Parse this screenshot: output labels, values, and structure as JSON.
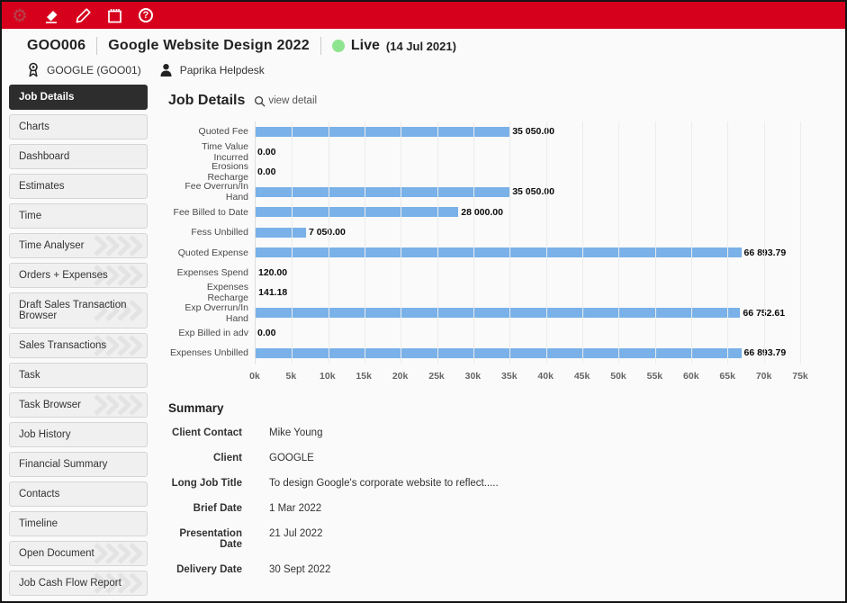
{
  "toolbar": {
    "icons": [
      {
        "name": "gear-icon"
      },
      {
        "name": "eraser-icon"
      },
      {
        "name": "pencil-icon"
      },
      {
        "name": "notepad-icon"
      },
      {
        "name": "help-icon",
        "glyph": "?"
      }
    ],
    "bg_color": "#d6001c"
  },
  "header": {
    "job_code": "GOO006",
    "job_title": "Google Website Design 2022",
    "status_label": "Live",
    "status_date": "(14 Jul 2021)",
    "status_color": "#8fe58f",
    "client_badge": "GOOGLE (GOO01)",
    "helpdesk": "Paprika Helpdesk"
  },
  "sidebar": {
    "items": [
      {
        "label": "Job Details",
        "selected": true,
        "chevrons": false
      },
      {
        "label": "Charts",
        "selected": false,
        "chevrons": false
      },
      {
        "label": "Dashboard",
        "selected": false,
        "chevrons": false
      },
      {
        "label": "Estimates",
        "selected": false,
        "chevrons": false
      },
      {
        "label": "Time",
        "selected": false,
        "chevrons": false
      },
      {
        "label": "Time Analyser",
        "selected": false,
        "chevrons": true
      },
      {
        "label": "Orders + Expenses",
        "selected": false,
        "chevrons": true
      },
      {
        "label": "Draft Sales Transaction Browser",
        "selected": false,
        "chevrons": true
      },
      {
        "label": "Sales Transactions",
        "selected": false,
        "chevrons": true
      },
      {
        "label": "Task",
        "selected": false,
        "chevrons": false
      },
      {
        "label": "Task Browser",
        "selected": false,
        "chevrons": true
      },
      {
        "label": "Job History",
        "selected": false,
        "chevrons": false
      },
      {
        "label": "Financial Summary",
        "selected": false,
        "chevrons": false
      },
      {
        "label": "Contacts",
        "selected": false,
        "chevrons": false
      },
      {
        "label": "Timeline",
        "selected": false,
        "chevrons": false
      },
      {
        "label": "Open Document",
        "selected": false,
        "chevrons": true
      },
      {
        "label": "Job Cash Flow Report",
        "selected": false,
        "chevrons": true
      }
    ]
  },
  "main": {
    "title": "Job Details",
    "view_detail_label": "view detail",
    "summary": {
      "title": "Summary",
      "rows": [
        {
          "label": "Client Contact",
          "value": "Mike Young"
        },
        {
          "label": "Client",
          "value": "GOOGLE"
        },
        {
          "label": "Long Job Title",
          "value": "To design Google's corporate website to reflect....."
        },
        {
          "label": "Brief Date",
          "value": "1 Mar 2022"
        },
        {
          "label": "Presentation Date",
          "value": "21 Jul 2022"
        },
        {
          "label": "Delivery Date",
          "value": "30 Sept 2022"
        }
      ]
    }
  },
  "chart_data": {
    "type": "bar",
    "orientation": "horizontal",
    "title": "",
    "xlabel": "",
    "ylabel": "",
    "categories": [
      "Quoted Fee",
      "Time Value Incurred",
      "Erosions Recharge",
      "Fee Overrun/In Hand",
      "Fee Billed to Date",
      "Fess Unbilled",
      "Quoted Expense",
      "Expenses Spend",
      "Expenses Recharge",
      "Exp Overrun/In Hand",
      "Exp Billed in adv",
      "Expenses Unbilled"
    ],
    "values": [
      35050.0,
      0.0,
      0.0,
      35050.0,
      28000.0,
      7050.0,
      66893.79,
      120.0,
      141.18,
      66752.61,
      0.0,
      66893.79
    ],
    "value_labels": [
      "35 050.00",
      "0.00",
      "0.00",
      "35 050.00",
      "28 000.00",
      "7 050.00",
      "66 893.79",
      "120.00",
      "141.18",
      "66 752.61",
      "0.00",
      "66 893.79"
    ],
    "xlim": [
      0,
      75000
    ],
    "x_ticks": [
      "0k",
      "5k",
      "10k",
      "15k",
      "20k",
      "25k",
      "30k",
      "35k",
      "40k",
      "45k",
      "50k",
      "55k",
      "60k",
      "65k",
      "70k",
      "75k"
    ],
    "bar_color": "#79b1e8",
    "grid": true,
    "legend": false
  }
}
